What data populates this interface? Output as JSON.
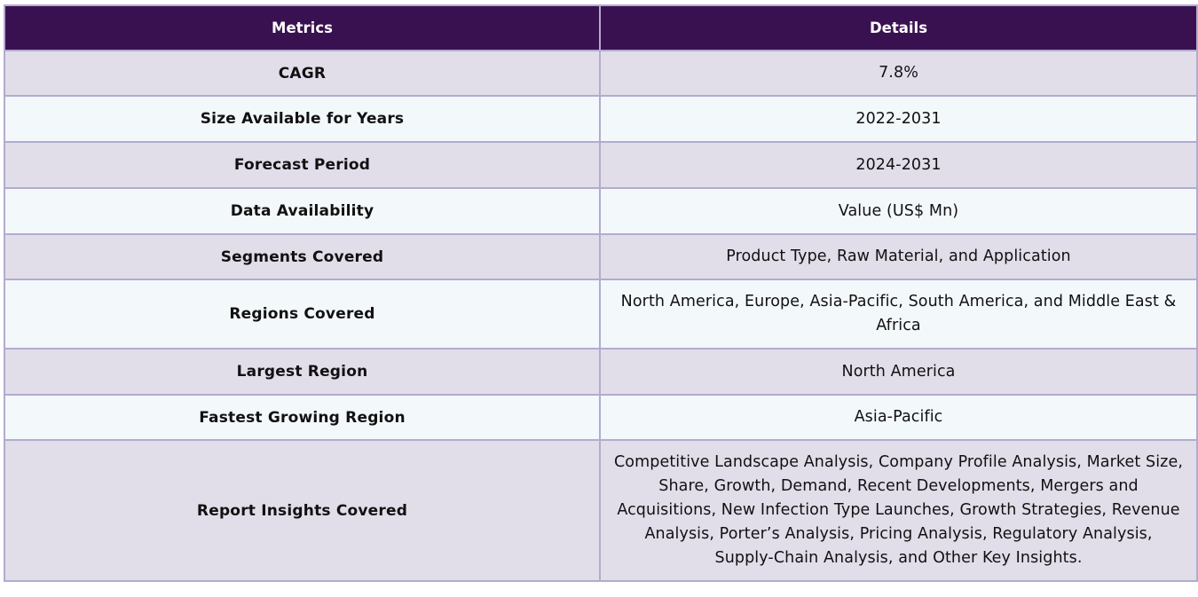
{
  "table": {
    "headers": [
      "Metrics",
      "Details"
    ],
    "rows": [
      {
        "metric": "CAGR",
        "detail": "7.8%"
      },
      {
        "metric": "Size Available for Years",
        "detail": "2022-2031"
      },
      {
        "metric": "Forecast Period",
        "detail": "2024-2031"
      },
      {
        "metric": "Data Availability",
        "detail": "Value (US$ Mn)"
      },
      {
        "metric": "Segments Covered",
        "detail": "Product Type, Raw Material, and Application"
      },
      {
        "metric": "Regions Covered",
        "detail": "North America, Europe, Asia-Pacific, South America, and Middle East & Africa"
      },
      {
        "metric": "Largest Region",
        "detail": "North America"
      },
      {
        "metric": "Fastest Growing Region",
        "detail": "Asia-Pacific"
      },
      {
        "metric": "Report Insights Covered",
        "detail": "Competitive Landscape Analysis, Company Profile Analysis, Market Size, Share, Growth, Demand, Recent Developments, Mergers and Acquisitions, New Infection Type Launches, Growth Strategies, Revenue Analysis, Porter’s Analysis, Pricing Analysis, Regulatory Analysis, Supply-Chain Analysis, and Other Key Insights."
      }
    ]
  },
  "colors": {
    "header_bg": "#3a1150",
    "header_text": "#ffffff",
    "row_odd_bg": "#e1deea",
    "row_even_bg": "#f3f8fb",
    "border": "#b3abcf"
  }
}
